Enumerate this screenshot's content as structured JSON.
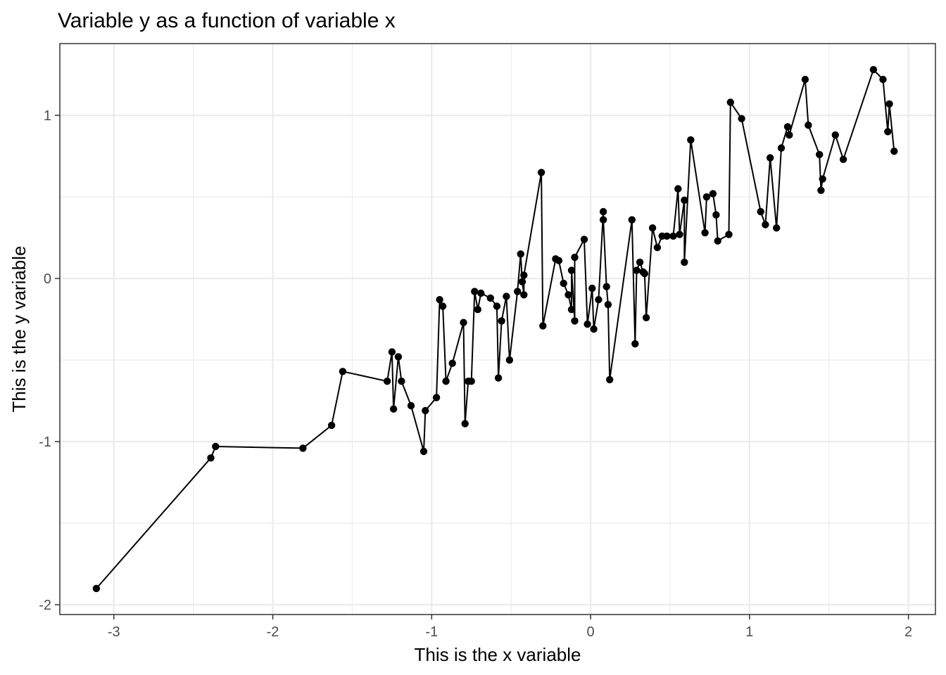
{
  "chart_data": {
    "type": "line",
    "title": "Variable y as a function of variable x",
    "xlabel": "This is the x variable",
    "ylabel": "This is the y variable",
    "xlim": [
      -3.34,
      2.17
    ],
    "ylim": [
      -2.06,
      1.44
    ],
    "x_ticks": [
      -3,
      -2,
      -1,
      0,
      1,
      2
    ],
    "x_tick_labels": [
      "-3",
      "-2",
      "-1",
      "0",
      "1",
      "2"
    ],
    "y_ticks": [
      -2,
      -1,
      0,
      1
    ],
    "y_tick_labels": [
      "-2",
      "-1",
      "0",
      "1"
    ],
    "grid": true,
    "markers": true,
    "series": [
      {
        "points": [
          [
            -3.11,
            -1.9
          ],
          [
            -2.39,
            -1.1
          ],
          [
            -2.36,
            -1.03
          ],
          [
            -1.81,
            -1.04
          ],
          [
            -1.63,
            -0.9
          ],
          [
            -1.56,
            -0.57
          ],
          [
            -1.28,
            -0.63
          ],
          [
            -1.25,
            -0.45
          ],
          [
            -1.24,
            -0.8
          ],
          [
            -1.21,
            -0.48
          ],
          [
            -1.19,
            -0.63
          ],
          [
            -1.13,
            -0.78
          ],
          [
            -1.05,
            -1.06
          ],
          [
            -1.04,
            -0.81
          ],
          [
            -0.97,
            -0.73
          ],
          [
            -0.95,
            -0.13
          ],
          [
            -0.93,
            -0.17
          ],
          [
            -0.91,
            -0.63
          ],
          [
            -0.87,
            -0.52
          ],
          [
            -0.8,
            -0.27
          ],
          [
            -0.79,
            -0.89
          ],
          [
            -0.77,
            -0.63
          ],
          [
            -0.75,
            -0.63
          ],
          [
            -0.73,
            -0.08
          ],
          [
            -0.71,
            -0.19
          ],
          [
            -0.69,
            -0.09
          ],
          [
            -0.63,
            -0.12
          ],
          [
            -0.59,
            -0.17
          ],
          [
            -0.58,
            -0.61
          ],
          [
            -0.56,
            -0.26
          ],
          [
            -0.53,
            -0.11
          ],
          [
            -0.51,
            -0.5
          ],
          [
            -0.46,
            -0.08
          ],
          [
            -0.44,
            0.15
          ],
          [
            -0.43,
            -0.02
          ],
          [
            -0.42,
            -0.1
          ],
          [
            -0.42,
            0.02
          ],
          [
            -0.31,
            0.65
          ],
          [
            -0.3,
            -0.29
          ],
          [
            -0.22,
            0.12
          ],
          [
            -0.2,
            0.11
          ],
          [
            -0.17,
            -0.03
          ],
          [
            -0.14,
            -0.1
          ],
          [
            -0.12,
            -0.19
          ],
          [
            -0.12,
            0.05
          ],
          [
            -0.1,
            -0.26
          ],
          [
            -0.1,
            0.13
          ],
          [
            -0.04,
            0.24
          ],
          [
            -0.02,
            -0.28
          ],
          [
            0.01,
            -0.06
          ],
          [
            0.02,
            -0.31
          ],
          [
            0.05,
            -0.13
          ],
          [
            0.08,
            0.41
          ],
          [
            0.08,
            0.36
          ],
          [
            0.1,
            -0.05
          ],
          [
            0.11,
            -0.16
          ],
          [
            0.12,
            -0.62
          ],
          [
            0.26,
            0.36
          ],
          [
            0.28,
            -0.4
          ],
          [
            0.29,
            0.05
          ],
          [
            0.31,
            0.1
          ],
          [
            0.33,
            0.04
          ],
          [
            0.34,
            0.03
          ],
          [
            0.35,
            -0.24
          ],
          [
            0.39,
            0.31
          ],
          [
            0.42,
            0.19
          ],
          [
            0.45,
            0.26
          ],
          [
            0.48,
            0.26
          ],
          [
            0.52,
            0.26
          ],
          [
            0.55,
            0.55
          ],
          [
            0.56,
            0.27
          ],
          [
            0.59,
            0.48
          ],
          [
            0.59,
            0.1
          ],
          [
            0.63,
            0.85
          ],
          [
            0.72,
            0.28
          ],
          [
            0.73,
            0.5
          ],
          [
            0.77,
            0.52
          ],
          [
            0.79,
            0.39
          ],
          [
            0.8,
            0.23
          ],
          [
            0.87,
            0.27
          ],
          [
            0.88,
            1.08
          ],
          [
            0.95,
            0.98
          ],
          [
            1.07,
            0.41
          ],
          [
            1.1,
            0.33
          ],
          [
            1.13,
            0.74
          ],
          [
            1.17,
            0.31
          ],
          [
            1.2,
            0.8
          ],
          [
            1.24,
            0.93
          ],
          [
            1.25,
            0.88
          ],
          [
            1.35,
            1.22
          ],
          [
            1.37,
            0.94
          ],
          [
            1.44,
            0.76
          ],
          [
            1.45,
            0.54
          ],
          [
            1.46,
            0.61
          ],
          [
            1.54,
            0.88
          ],
          [
            1.59,
            0.73
          ],
          [
            1.78,
            1.28
          ],
          [
            1.84,
            1.22
          ],
          [
            1.87,
            0.9
          ],
          [
            1.88,
            1.07
          ],
          [
            1.91,
            0.78
          ]
        ]
      }
    ]
  }
}
